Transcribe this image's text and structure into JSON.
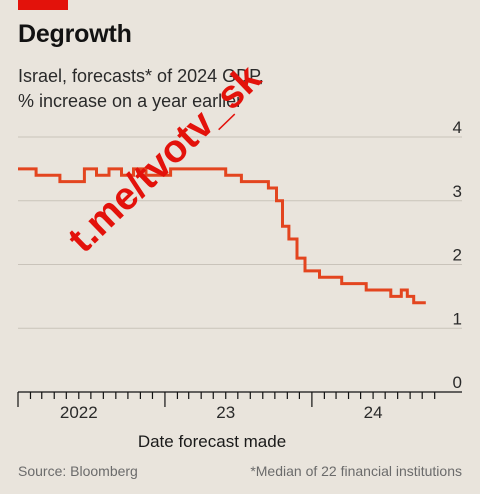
{
  "header": {
    "title": "Degrowth",
    "subtitle_line1": "Israel, forecasts* of 2024 GDP,",
    "subtitle_line2": "% increase on a year earlier"
  },
  "watermark": "t.me/tvotv_sk",
  "footer": {
    "source": "Source: Bloomberg",
    "note": "*Median of 22 financial institutions"
  },
  "colors": {
    "background": "#e9e4dc",
    "line": "#e3451f",
    "brand_red": "#e3120b",
    "grid": "#c9c3ba",
    "axis": "#121212"
  },
  "chart_data": {
    "type": "line",
    "title": "Degrowth",
    "subtitle": "Israel, forecasts* of 2024 GDP, % increase on a year earlier",
    "xlabel": "Date forecast made",
    "ylabel": "",
    "ylim": [
      0,
      4
    ],
    "xlim": [
      "2022-01-01",
      "2024-12-31"
    ],
    "yticks": [
      "0",
      "1",
      "2",
      "3",
      "4"
    ],
    "xticks": [
      {
        "label": "2022",
        "date": "2022-06-01"
      },
      {
        "label": "23",
        "date": "2023-06-01"
      },
      {
        "label": "24",
        "date": "2024-06-01"
      }
    ],
    "grid": true,
    "y_axis_side": "right",
    "series": [
      {
        "name": "",
        "x": [
          "2022-01-01",
          "2022-02-15",
          "2022-02-15",
          "2022-04-15",
          "2022-04-15",
          "2022-06-15",
          "2022-06-15",
          "2022-07-15",
          "2022-07-15",
          "2022-08-15",
          "2022-08-15",
          "2022-09-15",
          "2022-09-15",
          "2022-10-15",
          "2022-10-15",
          "2022-11-15",
          "2022-11-15",
          "2023-01-15",
          "2023-01-15",
          "2023-06-01",
          "2023-06-01",
          "2023-07-10",
          "2023-07-10",
          "2023-09-15",
          "2023-09-15",
          "2023-10-05",
          "2023-10-05",
          "2023-10-20",
          "2023-10-20",
          "2023-11-05",
          "2023-11-05",
          "2023-11-25",
          "2023-11-25",
          "2023-12-15",
          "2023-12-15",
          "2024-01-20",
          "2024-01-20",
          "2024-02-10",
          "2024-02-10",
          "2024-03-15",
          "2024-03-15",
          "2024-05-15",
          "2024-05-15",
          "2024-06-15",
          "2024-06-15",
          "2024-07-15",
          "2024-07-15",
          "2024-08-10",
          "2024-08-10",
          "2024-08-25",
          "2024-08-25",
          "2024-09-10",
          "2024-09-10",
          "2024-10-10"
        ],
        "values": [
          3.5,
          3.5,
          3.4,
          3.4,
          3.3,
          3.3,
          3.5,
          3.5,
          3.4,
          3.4,
          3.5,
          3.5,
          3.4,
          3.4,
          3.5,
          3.5,
          3.4,
          3.4,
          3.5,
          3.5,
          3.4,
          3.4,
          3.3,
          3.3,
          3.2,
          3.2,
          3.0,
          3.0,
          2.6,
          2.6,
          2.4,
          2.4,
          2.1,
          2.1,
          1.9,
          1.9,
          1.8,
          1.8,
          1.8,
          1.8,
          1.7,
          1.7,
          1.6,
          1.6,
          1.6,
          1.6,
          1.5,
          1.5,
          1.6,
          1.6,
          1.5,
          1.5,
          1.4,
          1.4
        ]
      }
    ]
  }
}
